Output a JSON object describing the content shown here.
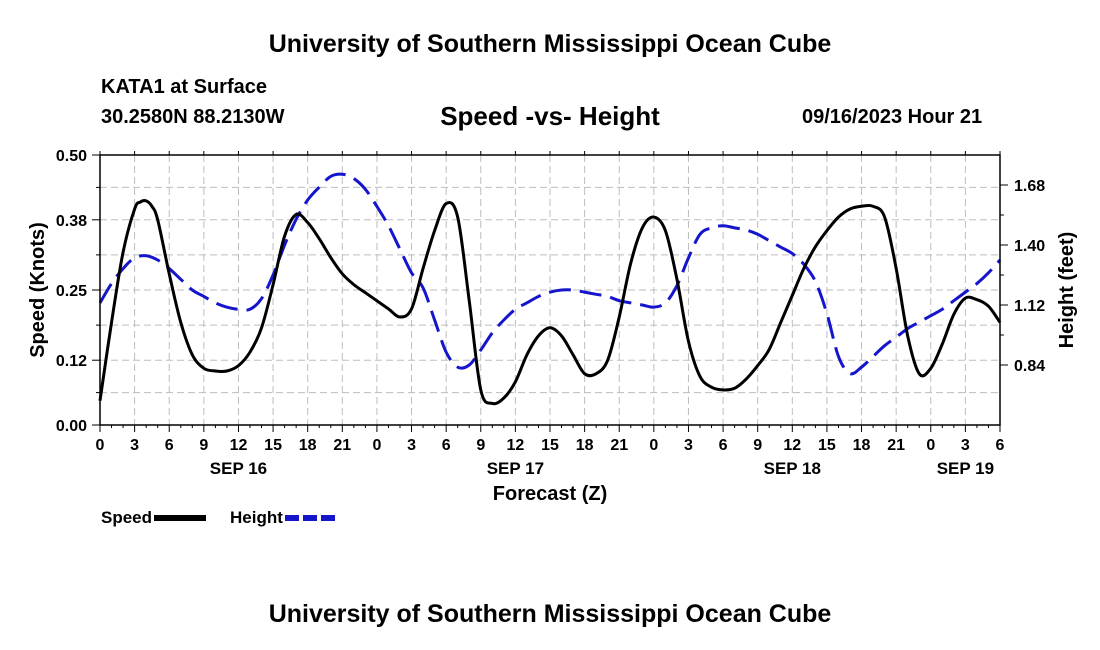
{
  "header": {
    "title": "University of Southern Mississippi Ocean Cube",
    "station": "KATA1 at Surface",
    "coords": "30.2580N  88.2130W",
    "subtitle": "Speed -vs- Height",
    "datetime": "09/16/2023 Hour 21"
  },
  "footer": {
    "title": "University of Southern Mississippi Ocean Cube"
  },
  "legend": {
    "speed_label": "Speed",
    "height_label": "Height"
  },
  "chart_data": {
    "type": "line",
    "title": "Speed -vs- Height",
    "xlabel": "Forecast (Z)",
    "ylabel": "Speed (Knots)",
    "y2label": "Height (feet)",
    "xlim": [
      0,
      78
    ],
    "ylim": [
      0,
      0.5
    ],
    "y2lim": [
      0.56,
      1.82
    ],
    "x_ticks": [
      0,
      3,
      6,
      9,
      12,
      15,
      18,
      21,
      24,
      27,
      30,
      33,
      36,
      39,
      42,
      45,
      48,
      51,
      54,
      57,
      60,
      63,
      66,
      69,
      72,
      75,
      78
    ],
    "x_tick_labels": [
      "0",
      "3",
      "6",
      "9",
      "12",
      "15",
      "18",
      "21",
      "0",
      "3",
      "6",
      "9",
      "12",
      "15",
      "18",
      "21",
      "0",
      "3",
      "6",
      "9",
      "12",
      "15",
      "18",
      "21",
      "0",
      "3",
      "6"
    ],
    "date_labels": [
      {
        "x": 12,
        "label": "SEP 16"
      },
      {
        "x": 36,
        "label": "SEP 17"
      },
      {
        "x": 60,
        "label": "SEP 18"
      },
      {
        "x": 75,
        "label": "SEP 19"
      }
    ],
    "y_ticks": [
      0.0,
      0.12,
      0.25,
      0.38,
      0.5
    ],
    "y_tick_labels": [
      "0.00",
      "0.12",
      "0.25",
      "0.38",
      "0.50"
    ],
    "y2_ticks": [
      0.84,
      1.12,
      1.4,
      1.68
    ],
    "y2_tick_labels": [
      "0.84",
      "1.12",
      "1.40",
      "1.68"
    ],
    "grid": true,
    "series": [
      {
        "name": "Speed",
        "axis": "left",
        "color": "#000000",
        "dash": "solid",
        "x": [
          0,
          1,
          2,
          3,
          3.5,
          4,
          4.5,
          5,
          6,
          7,
          8,
          9,
          10,
          11,
          12,
          13,
          14,
          15,
          16,
          17,
          18,
          19,
          20,
          21,
          22,
          23,
          24,
          25,
          26,
          27,
          28,
          29,
          30,
          31,
          32,
          33,
          34,
          35,
          36,
          37,
          38,
          39,
          40,
          41,
          42,
          43,
          44,
          45,
          46,
          47,
          48,
          49,
          50,
          51,
          52,
          53,
          54,
          55,
          56,
          57,
          58,
          59,
          60,
          61,
          62,
          63,
          64,
          65,
          66,
          67,
          68,
          69,
          70,
          71,
          72,
          73,
          74,
          75,
          76,
          77,
          78
        ],
        "values": [
          0.045,
          0.19,
          0.32,
          0.4,
          0.413,
          0.415,
          0.405,
          0.38,
          0.28,
          0.19,
          0.13,
          0.105,
          0.1,
          0.1,
          0.11,
          0.135,
          0.18,
          0.26,
          0.35,
          0.39,
          0.375,
          0.345,
          0.31,
          0.28,
          0.26,
          0.245,
          0.23,
          0.215,
          0.2,
          0.215,
          0.29,
          0.36,
          0.41,
          0.385,
          0.23,
          0.065,
          0.04,
          0.05,
          0.08,
          0.13,
          0.165,
          0.18,
          0.165,
          0.13,
          0.095,
          0.095,
          0.12,
          0.2,
          0.3,
          0.365,
          0.385,
          0.36,
          0.27,
          0.155,
          0.09,
          0.07,
          0.065,
          0.068,
          0.085,
          0.11,
          0.14,
          0.19,
          0.24,
          0.29,
          0.33,
          0.36,
          0.385,
          0.4,
          0.405,
          0.405,
          0.385,
          0.29,
          0.165,
          0.095,
          0.105,
          0.15,
          0.205,
          0.235,
          0.232,
          0.22,
          0.19
        ]
      },
      {
        "name": "Height",
        "axis": "right",
        "color": "#1515cc",
        "dash": "dashed",
        "x": [
          0,
          1,
          2,
          3,
          4,
          5,
          6,
          7,
          8,
          9,
          10,
          11,
          12,
          13,
          14,
          15,
          16,
          17,
          18,
          19,
          20,
          21,
          22,
          23,
          24,
          25,
          26,
          27,
          28,
          29,
          30,
          31,
          32,
          33,
          34,
          35,
          36,
          37,
          38,
          39,
          40,
          41,
          42,
          43,
          44,
          45,
          46,
          47,
          48,
          49,
          50,
          51,
          52,
          53,
          54,
          55,
          56,
          57,
          58,
          59,
          60,
          61,
          62,
          63,
          64,
          65,
          66,
          67,
          68,
          69,
          70,
          71,
          72,
          73,
          74,
          75,
          76,
          77,
          78
        ],
        "values": [
          1.13,
          1.22,
          1.29,
          1.34,
          1.35,
          1.33,
          1.29,
          1.24,
          1.19,
          1.16,
          1.13,
          1.11,
          1.1,
          1.1,
          1.15,
          1.26,
          1.4,
          1.52,
          1.61,
          1.67,
          1.72,
          1.73,
          1.71,
          1.66,
          1.58,
          1.49,
          1.38,
          1.27,
          1.2,
          1.05,
          0.9,
          0.83,
          0.84,
          0.91,
          0.99,
          1.05,
          1.1,
          1.13,
          1.16,
          1.18,
          1.19,
          1.19,
          1.18,
          1.17,
          1.16,
          1.14,
          1.13,
          1.12,
          1.11,
          1.13,
          1.21,
          1.34,
          1.45,
          1.48,
          1.49,
          1.48,
          1.47,
          1.45,
          1.42,
          1.39,
          1.36,
          1.31,
          1.23,
          1.08,
          0.88,
          0.8,
          0.83,
          0.88,
          0.93,
          0.97,
          1.01,
          1.04,
          1.07,
          1.1,
          1.14,
          1.18,
          1.22,
          1.27,
          1.33
        ]
      }
    ]
  }
}
